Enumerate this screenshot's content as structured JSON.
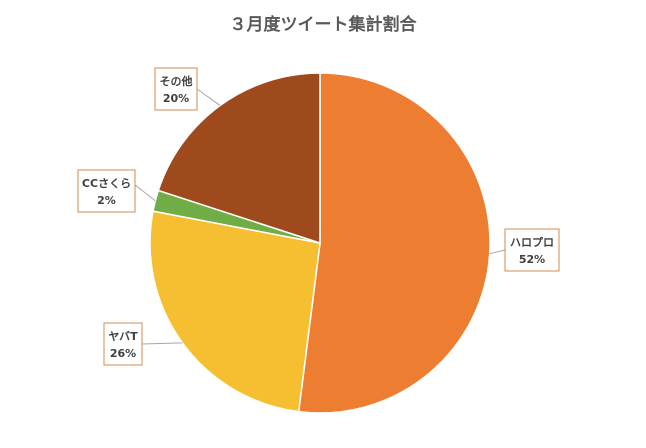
{
  "chart_data": {
    "type": "pie",
    "title": "３月度ツイート集計割合",
    "categories": [
      "ハロプロ",
      "ヤバT",
      "CCさくら",
      "その他"
    ],
    "values": [
      52,
      26,
      2,
      20
    ],
    "value_labels": [
      "52%",
      "26%",
      "2%",
      "20%"
    ],
    "colors": [
      "#ed7d31",
      "#f5bf31",
      "#70ad47",
      "#9e4a1c"
    ],
    "start_angle_deg": 0,
    "direction": "clockwise",
    "legend": "none",
    "data_labels": "callouts with category and percentage"
  }
}
